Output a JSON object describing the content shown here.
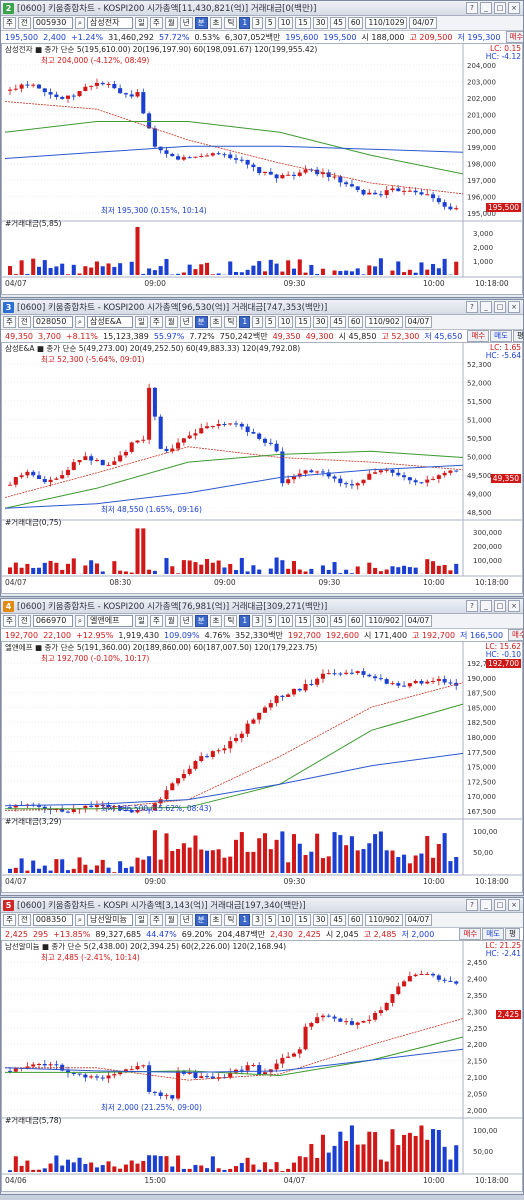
{
  "windows": [
    {
      "num": "2",
      "numColor": "#3aa34a",
      "title": "[0600] 키움종합차트 - KOSPI200 시가총액[11,430,821(억)] 거래대금[0(백만)]",
      "code": "005930",
      "name": "삼성전자",
      "period": "110/1029",
      "date": "04/07",
      "ratio": {
        "price": "195,500",
        "change": "2,400",
        "pct": "+1.24%",
        "volume": "31,460,292",
        "r1": "57.72%",
        "r2": "0.53%",
        "amount": "6,307,052백만",
        "quote": "195,600",
        "quote2": "195,500",
        "open": "시 188,000",
        "high": "고 209,500",
        "low": "저 195,300",
        "dir": "down"
      },
      "legend": "삼성전자 ■ 종가 단순 5(195,610.00) 20(196,197.90) 60(198,091.67) 120(199,955.42)",
      "lc": "LC: 0.15",
      "hc": "HC: -4.12",
      "yticks": [
        "204,000",
        "203,000",
        "202,000",
        "201,000",
        "200,000",
        "199,000",
        "198,000",
        "197,000",
        "196,000",
        "195,000"
      ],
      "maxLabel": "최고 204,000 (-4.12%, 08:49)",
      "minLabel": "최저 195,300 (0.15%, 10:14)",
      "curPrice": "195,500",
      "curPct": "1.24%",
      "volTitle": "#거래대금(5,85)",
      "volticks": [
        "3,000",
        "2,000",
        "1,000"
      ],
      "xticks": [
        "04/07",
        "09:00",
        "09:30",
        "10:00"
      ],
      "xend": "10:18:00"
    },
    {
      "num": "3",
      "numColor": "#2a6fd1",
      "title": "[0600] 키움종합차트 - KOSPI200 시가총액[96,530(억)] 거래대금[747,353(백만)]",
      "code": "028050",
      "name": "삼성E&A",
      "period": "110/902",
      "date": "04/07",
      "ratio": {
        "price": "49,350",
        "change": "3,700",
        "pct": "+8.11%",
        "volume": "15,123,389",
        "r1": "55.97%",
        "r2": "7.72%",
        "amount": "750,242백만",
        "quote": "49,350",
        "quote2": "49,300",
        "open": "시 45,850",
        "high": "고 52,300",
        "low": "저 45,650",
        "dir": "up"
      },
      "legend": "삼성E&A ■ 종가 단순 5(49,273.00) 20(49,252.50) 60(49,883.33) 120(49,792.08)",
      "lc": "LC: 1.65",
      "hc": "HC: -5.64",
      "yticks": [
        "52,300",
        "52,000",
        "51,500",
        "51,000",
        "50,500",
        "50,000",
        "49,500",
        "49,000",
        "48,500"
      ],
      "maxLabel": "최고 52,300 (-5.64%, 09:01)",
      "minLabel": "최저 48,550 (1.65%, 09:16)",
      "curPrice": "49,350",
      "curPct": "8.11%",
      "volTitle": "#거래대금(0,75)",
      "volticks": [
        "300,000",
        "200,000",
        "100,000"
      ],
      "xticks": [
        "04/07",
        "08:30",
        "09:00",
        "09:30",
        "10:00"
      ],
      "xend": "10:18:00"
    },
    {
      "num": "4",
      "numColor": "#e08a12",
      "title": "[0600] 키움종합차트 - KOSPI200 시가총액[76,981(억)] 거래대금[309,271(백만)]",
      "code": "066970",
      "name": "엘앤에프",
      "period": "110/902",
      "date": "04/07",
      "ratio": {
        "price": "192,700",
        "change": "22,100",
        "pct": "+12.95%",
        "volume": "1,919,430",
        "r1": "109.09%",
        "r2": "4.76%",
        "amount": "352,330백만",
        "quote": "192,700",
        "quote2": "192,600",
        "open": "시 171,400",
        "high": "고 192,700",
        "low": "저 166,500",
        "dir": "up"
      },
      "legend": "엘앤에프 ■ 종가 단순 5(191,360.00) 20(189,860.00) 60(187,007.50) 120(179,223.75)",
      "lc": "LC: 15.62",
      "hc": "HC: -0.10",
      "yticks": [
        "192,700",
        "190,000",
        "187,500",
        "185,000",
        "182,500",
        "180,000",
        "177,500",
        "175,000",
        "172,500",
        "170,000",
        "167,500"
      ],
      "maxLabel": "최고 192,700 (-0.10%, 10:17)",
      "minLabel": "최저 166,500 (15.62%, 08:43)",
      "curPrice": "192,700",
      "curPct": "12.95%",
      "volTitle": "#거래대금(3,29)",
      "volticks": [
        "100,00",
        "50,00"
      ],
      "xticks": [
        "04/07",
        "09:00",
        "09:30",
        "10:00"
      ],
      "xend": "10:18:00"
    },
    {
      "num": "5",
      "numColor": "#d02828",
      "title": "[0600] 키움종합차트 - KOSPI 시가총액[3,143(억)] 거래대금[197,340(백만)]",
      "code": "008350",
      "name": "남선알미늄",
      "period": "110/902",
      "date": "04/07",
      "ratio": {
        "price": "2,425",
        "change": "295",
        "pct": "+13.85%",
        "volume": "89,327,685",
        "r1": "44.47%",
        "r2": "69.20%",
        "amount": "204,487백만",
        "quote": "2,430",
        "quote2": "2,425",
        "open": "시 2,045",
        "high": "고 2,485",
        "low": "저 2,000",
        "dir": "up"
      },
      "legend": "남선알미늄 ■ 종가 단순 5(2,438.00) 20(2,394.25) 60(2,226.00) 120(2,168.94)",
      "lc": "LC: 21.25",
      "hc": "HC: -2.41",
      "yticks": [
        "2,450",
        "2,400",
        "2,350",
        "2,300",
        "2,250",
        "2,200",
        "2,150",
        "2,100",
        "2,050",
        "2,000"
      ],
      "maxLabel": "최고 2,485 (-2.41%, 10:14)",
      "minLabel": "최저 2,000 (21.25%, 09:00)",
      "curPrice": "2,425",
      "curPct": "13.85%",
      "volTitle": "#거래대금(5,78)",
      "volticks": [
        "100,00",
        "50,00"
      ],
      "xticks": [
        "04/06",
        "15:00",
        "04/07",
        "10:00"
      ],
      "xend": "10:18:00"
    }
  ],
  "ui": {
    "periodBtns": [
      "일",
      "주",
      "월",
      "년",
      "분",
      "초",
      "틱"
    ],
    "nums": [
      "1",
      "3",
      "5",
      "10",
      "15",
      "30",
      "45",
      "60"
    ],
    "buy": "매수",
    "sell": "매도",
    "flat": "평"
  },
  "colors": {
    "up": "#d01818",
    "down": "#1a3fd1",
    "ma5": "#d01818",
    "ma20": "#c8321e",
    "ma60": "#3c9a2e",
    "ma120": "#2a58d0"
  }
}
